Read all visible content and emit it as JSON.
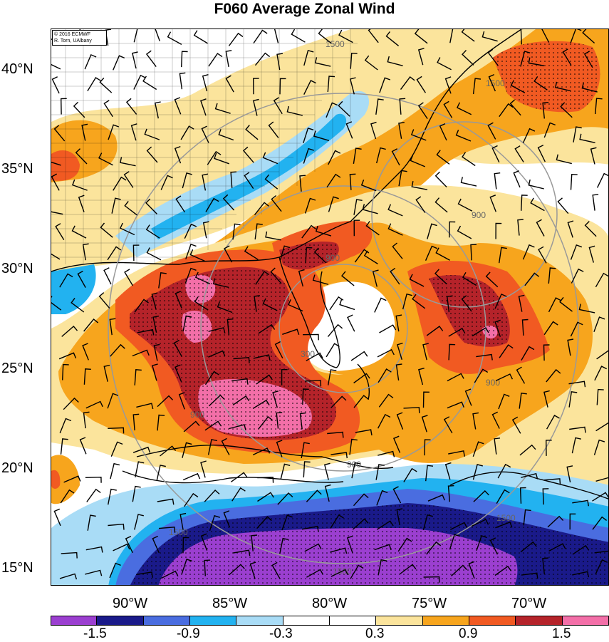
{
  "title": "F060 Average Zonal Wind",
  "credit": {
    "line1": "© 2016 ECMWF",
    "line2": "R. Torn, UAlbany"
  },
  "lat_labels": [
    "40°N",
    "35°N",
    "30°N",
    "25°N",
    "20°N",
    "15°N"
  ],
  "lon_labels": [
    "90°W",
    "85°W",
    "80°W",
    "75°W",
    "70°W"
  ],
  "colorbar": {
    "colors": [
      "#9b3fd0",
      "#1a1a8a",
      "#4a6de0",
      "#22b2f0",
      "#a9dcf6",
      "#ffffff",
      "#ffffff",
      "#fbe49c",
      "#f7a51d",
      "#f15a22",
      "#b5232a",
      "#f36fa8"
    ],
    "tick_labels": [
      "-1.5",
      "-0.9",
      "-0.3",
      "0.3",
      "0.9",
      "1.5"
    ]
  },
  "contour_labels": [
    "1500",
    "1500",
    "900",
    "900",
    "900",
    "900",
    "300",
    "900",
    "1500",
    "1500",
    "1500"
  ],
  "icons": [
    "wind-barb-icon"
  ]
}
